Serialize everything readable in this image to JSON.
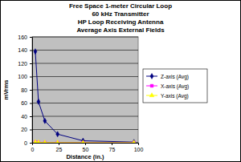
{
  "chart_data": {
    "type": "line",
    "title": [
      "Free Space 1-meter Circular Loop",
      "60 kHz Transmitter",
      "HP Loop Receiving Antenna",
      "Average Axis External Fields"
    ],
    "x_label": "Distance (in.)",
    "y_label": "mVrms",
    "x": [
      3,
      6,
      12,
      24,
      48,
      96
    ],
    "series": [
      {
        "name": "Z-axis (Avg)",
        "color": "#000080",
        "marker": "diamond",
        "values": [
          138,
          62,
          33,
          13,
          3,
          1
        ]
      },
      {
        "name": "X-axis (Avg)",
        "color": "#ff00ff",
        "marker": "square",
        "values": [
          1,
          0.5,
          0.3,
          0.2,
          0.1,
          0.1
        ]
      },
      {
        "name": "Y-axis (Avg)",
        "color": "#ffff00",
        "marker": "triangle",
        "values": [
          1,
          0.5,
          0.3,
          0.2,
          0.1,
          0.1
        ]
      }
    ],
    "xlim": [
      0,
      100
    ],
    "xticks": [
      0,
      25,
      50,
      75,
      100
    ],
    "ylim": [
      0,
      160
    ],
    "yticks": [
      0,
      20,
      40,
      60,
      80,
      100,
      120,
      140,
      160
    ],
    "grid": true,
    "legend": "right"
  }
}
